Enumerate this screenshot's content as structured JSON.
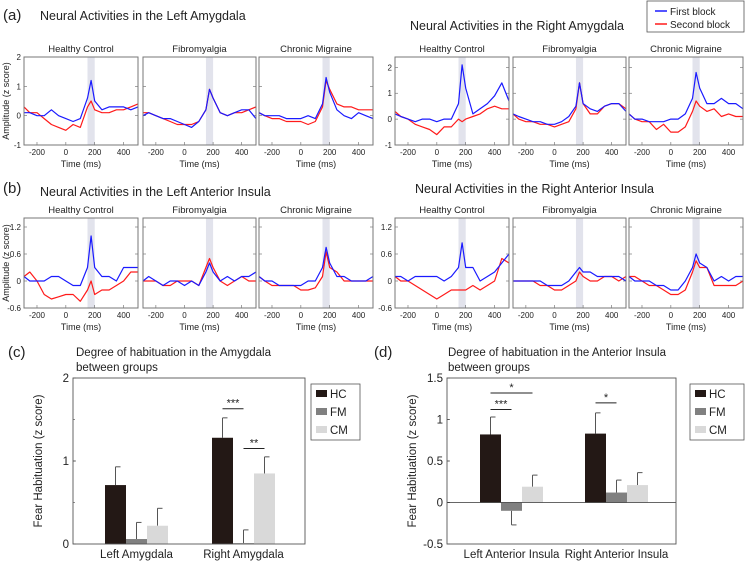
{
  "panel_labels": {
    "a": "(a)",
    "b": "(b)",
    "c": "(c)",
    "d": "(d)"
  },
  "legend": {
    "items": [
      {
        "label": "First block",
        "color": "#1a1aff"
      },
      {
        "label": "Second block",
        "color": "#ff1a1a"
      }
    ]
  },
  "chart_data": [
    {
      "type": "line",
      "title": "Neural Activities in the Left Amygdala",
      "ylabel": "Amplitude (z score)",
      "xlabel": "Time (ms)",
      "xlim": [
        -290,
        500
      ],
      "ylim": [
        -1,
        2
      ],
      "xticks": [
        -200,
        0,
        200,
        400
      ],
      "yticks": [
        -1,
        0,
        1,
        2
      ],
      "shaded_interval": [
        150,
        200
      ],
      "x": [
        -290,
        -250,
        -200,
        -150,
        -100,
        -50,
        0,
        50,
        100,
        150,
        175,
        200,
        250,
        300,
        350,
        400,
        450,
        500
      ],
      "panels": [
        {
          "title": "Healthy Control",
          "series": [
            {
              "name": "First block",
              "values": [
                0.1,
                0.1,
                0,
                0,
                0.2,
                0,
                -0.1,
                -0.2,
                -0.1,
                0.6,
                1.2,
                0.5,
                0.2,
                0.3,
                0.3,
                0.3,
                0.2,
                0.3
              ]
            },
            {
              "name": "Second block",
              "values": [
                0.3,
                0.1,
                0.1,
                -0.1,
                -0.3,
                -0.4,
                -0.5,
                -0.3,
                -0.4,
                0.3,
                0.5,
                0.2,
                0.1,
                0.1,
                0.2,
                0.2,
                0.3,
                0.4
              ]
            }
          ]
        },
        {
          "title": "Fibromyalgia",
          "series": [
            {
              "name": "First block",
              "values": [
                0,
                0.1,
                0,
                -0.1,
                -0.1,
                -0.2,
                -0.3,
                -0.4,
                -0.2,
                0.2,
                0.9,
                0.6,
                0.1,
                0,
                0.1,
                0.2,
                0.2,
                -0.1
              ]
            },
            {
              "name": "Second block",
              "values": [
                0.1,
                0.1,
                0,
                -0.1,
                -0.2,
                -0.3,
                -0.3,
                -0.3,
                -0.2,
                0.2,
                0.9,
                0.6,
                0.1,
                0,
                0.1,
                0.1,
                0.2,
                0.3
              ]
            }
          ]
        },
        {
          "title": "Chronic Migraine",
          "series": [
            {
              "name": "First block",
              "values": [
                0.1,
                0,
                0,
                0,
                -0.1,
                -0.1,
                -0.1,
                0,
                -0.1,
                0.4,
                1.3,
                0.8,
                0.2,
                0,
                -0.1,
                0.1,
                0,
                -0.1
              ]
            },
            {
              "name": "Second block",
              "values": [
                0.1,
                0,
                -0.1,
                -0.1,
                -0.2,
                -0.2,
                -0.2,
                -0.3,
                -0.2,
                0.3,
                1.2,
                0.9,
                0.4,
                0.3,
                0.3,
                0.2,
                0.2,
                0.2
              ]
            }
          ]
        }
      ]
    },
    {
      "type": "line",
      "title": "Neural Activities in the Right Amygdala",
      "ylabel": "",
      "xlabel": "Time (ms)",
      "xlim": [
        -290,
        500
      ],
      "ylim": [
        -1,
        2.4
      ],
      "xticks": [
        -200,
        0,
        200,
        400
      ],
      "yticks": [
        -1,
        0,
        1,
        2
      ],
      "shaded_interval": [
        150,
        200
      ],
      "x": [
        -290,
        -250,
        -200,
        -150,
        -100,
        -50,
        0,
        50,
        100,
        150,
        175,
        200,
        250,
        300,
        350,
        400,
        450,
        500
      ],
      "panels": [
        {
          "title": "Healthy Control",
          "series": [
            {
              "name": "First block",
              "values": [
                0.2,
                0.1,
                0,
                -0.1,
                0,
                0,
                -0.1,
                0,
                0,
                0.6,
                2.1,
                1.2,
                0.2,
                0.4,
                0.6,
                0.9,
                1.4,
                0.7
              ]
            },
            {
              "name": "Second block",
              "values": [
                0.3,
                0.1,
                0,
                -0.2,
                -0.3,
                -0.4,
                -0.6,
                -0.3,
                -0.3,
                0,
                -0.1,
                0,
                0.1,
                0.2,
                0.4,
                0.5,
                0.4,
                0.4
              ]
            }
          ]
        },
        {
          "title": "Fibromyalgia",
          "series": [
            {
              "name": "First block",
              "values": [
                0.2,
                0.1,
                0,
                -0.1,
                -0.1,
                -0.2,
                -0.2,
                -0.1,
                0.1,
                0.5,
                1.4,
                0.6,
                0.4,
                0.3,
                0.5,
                0.6,
                0.6,
                0.3
              ]
            },
            {
              "name": "Second block",
              "values": [
                0.2,
                0,
                -0.1,
                -0.1,
                -0.2,
                -0.2,
                -0.3,
                -0.2,
                -0.1,
                0.4,
                1.4,
                0.6,
                0.2,
                0.2,
                0.5,
                0.6,
                0.6,
                0.4
              ]
            }
          ]
        },
        {
          "title": "Chronic Migraine",
          "series": [
            {
              "name": "First block",
              "values": [
                0.2,
                0,
                0,
                -0.1,
                -0.1,
                -0.1,
                0,
                0,
                0.2,
                0.8,
                1.8,
                1.2,
                0.6,
                0.6,
                0.8,
                0.6,
                0.6,
                0.4
              ]
            },
            {
              "name": "Second block",
              "values": [
                0.2,
                0,
                -0.1,
                -0.1,
                -0.4,
                -0.2,
                -0.5,
                -0.5,
                -0.3,
                0.3,
                0.7,
                0.5,
                0.3,
                0.4,
                0.1,
                0.2,
                0.1,
                0.1
              ]
            }
          ]
        }
      ]
    },
    {
      "type": "line",
      "title": "Neural Activities in the Left Anterior Insula",
      "ylabel": "Amplitude (z score)",
      "xlabel": "Time (ms)",
      "xlim": [
        -290,
        500
      ],
      "ylim": [
        -0.6,
        1.4
      ],
      "xticks": [
        -200,
        0,
        200,
        400
      ],
      "yticks": [
        -0.6,
        0,
        0.6,
        1.2
      ],
      "shaded_interval": [
        150,
        200
      ],
      "x": [
        -290,
        -250,
        -200,
        -150,
        -100,
        -50,
        0,
        50,
        100,
        150,
        175,
        200,
        250,
        300,
        350,
        400,
        450,
        500
      ],
      "panels": [
        {
          "title": "Healthy Control",
          "series": [
            {
              "name": "First block",
              "values": [
                0.1,
                0,
                0,
                0,
                0.1,
                0.1,
                0,
                -0.1,
                -0.1,
                0.3,
                1.0,
                0.3,
                0.1,
                0.1,
                0,
                0.3,
                0.3,
                0.3
              ]
            },
            {
              "name": "Second block",
              "values": [
                0.1,
                0.2,
                0,
                -0.3,
                -0.4,
                -0.35,
                -0.3,
                -0.3,
                -0.45,
                -0.2,
                0,
                -0.3,
                -0.2,
                -0.2,
                -0.1,
                0,
                0.2,
                0.2
              ]
            }
          ]
        },
        {
          "title": "Fibromyalgia",
          "series": [
            {
              "name": "First block",
              "values": [
                0,
                0.1,
                0,
                -0.1,
                0,
                0,
                -0.1,
                0,
                -0.1,
                0.2,
                0.4,
                0.2,
                0,
                0.1,
                0,
                0.1,
                0.1,
                0.2
              ]
            },
            {
              "name": "Second block",
              "values": [
                0,
                0,
                0,
                -0.1,
                -0.1,
                0,
                0,
                0,
                -0.1,
                0.3,
                0.5,
                0.3,
                0,
                -0.1,
                0,
                0.1,
                0,
                0
              ]
            }
          ]
        },
        {
          "title": "Chronic Migraine",
          "series": [
            {
              "name": "First block",
              "values": [
                0.1,
                0,
                0,
                -0.1,
                -0.1,
                -0.1,
                -0.1,
                0,
                0,
                0.3,
                0.75,
                0.4,
                0.1,
                0.1,
                0,
                0,
                0,
                0.1
              ]
            },
            {
              "name": "Second block",
              "values": [
                0.1,
                0,
                -0.1,
                -0.1,
                -0.1,
                -0.1,
                -0.2,
                -0.2,
                -0.15,
                0.1,
                0.65,
                0.3,
                0.2,
                0,
                0,
                0,
                0,
                0
              ]
            }
          ]
        }
      ]
    },
    {
      "type": "line",
      "title": "Neural Activities in the Right Anterior Insula",
      "ylabel": "",
      "xlabel": "Time (ms)",
      "xlim": [
        -290,
        500
      ],
      "ylim": [
        -0.6,
        1.4
      ],
      "xticks": [
        -200,
        0,
        200,
        400
      ],
      "yticks": [
        -0.6,
        0,
        0.6,
        1.2
      ],
      "shaded_interval": [
        150,
        200
      ],
      "x": [
        -290,
        -250,
        -200,
        -150,
        -100,
        -50,
        0,
        50,
        100,
        150,
        175,
        200,
        250,
        300,
        350,
        400,
        450,
        500
      ],
      "panels": [
        {
          "title": "Healthy Control",
          "series": [
            {
              "name": "First block",
              "values": [
                0.1,
                0.1,
                0,
                0.1,
                0.1,
                0.1,
                0.1,
                0,
                0.1,
                0.3,
                0.85,
                0.3,
                0.3,
                0,
                0.1,
                0.2,
                0.4,
                0.6
              ]
            },
            {
              "name": "Second block",
              "values": [
                0.1,
                0,
                0,
                -0.1,
                -0.2,
                -0.3,
                -0.4,
                -0.3,
                -0.2,
                -0.2,
                -0.2,
                -0.2,
                -0.1,
                -0.2,
                -0.1,
                0,
                0.5,
                0.4
              ]
            }
          ]
        },
        {
          "title": "Fibromyalgia",
          "series": [
            {
              "name": "First block",
              "values": [
                0,
                0,
                0,
                0,
                0,
                -0.1,
                -0.1,
                -0.1,
                0,
                0.2,
                0.3,
                0.2,
                0.2,
                0.1,
                0.1,
                0.1,
                0.1,
                0
              ]
            },
            {
              "name": "Second block",
              "values": [
                0,
                0,
                0,
                0,
                -0.1,
                -0.1,
                -0.2,
                -0.2,
                -0.1,
                0,
                0.2,
                0.1,
                0,
                0,
                0.1,
                0.1,
                0,
                0.1
              ]
            }
          ]
        },
        {
          "title": "Chronic Migraine",
          "series": [
            {
              "name": "First block",
              "values": [
                0.1,
                0,
                0,
                0,
                -0.1,
                -0.1,
                -0.2,
                -0.2,
                0,
                0.3,
                0.6,
                0.4,
                0.3,
                0,
                0.1,
                0,
                0.1,
                0.1
              ]
            },
            {
              "name": "Second block",
              "values": [
                0.1,
                0.1,
                0,
                -0.1,
                -0.1,
                -0.2,
                -0.3,
                -0.3,
                -0.2,
                0.2,
                0.45,
                0.3,
                0.3,
                -0.1,
                -0.1,
                -0.1,
                -0.1,
                0
              ]
            }
          ]
        }
      ]
    },
    {
      "type": "bar",
      "title": [
        "Degree of habituation in the Amygdala",
        "between groups"
      ],
      "ylabel": "Fear Habituation (z score)",
      "categories": [
        "Left Amygdala",
        "Right Amygdala"
      ],
      "ylim": [
        0,
        2
      ],
      "yticks": [
        0,
        1,
        2
      ],
      "series": [
        {
          "name": "HC",
          "color": "#231815",
          "values": [
            0.71,
            1.28
          ],
          "error_upper": [
            0.93,
            1.52
          ]
        },
        {
          "name": "FM",
          "color": "#808080",
          "values": [
            0.06,
            0.01
          ],
          "error_upper": [
            0.26,
            0.17
          ]
        },
        {
          "name": "CM",
          "color": "#d9d9d9",
          "values": [
            0.22,
            0.85
          ],
          "error_upper": [
            0.43,
            1.05
          ]
        }
      ],
      "significance": [
        {
          "category": 1,
          "from": 0,
          "to": 1,
          "y": 1.63,
          "label": "***"
        },
        {
          "category": 1,
          "from": 1,
          "to": 2,
          "y": 1.15,
          "label": "**"
        }
      ]
    },
    {
      "type": "bar",
      "title": [
        "Degree of habituation in the Anterior Insula",
        "between groups"
      ],
      "ylabel": "Fear Habituation (z score)",
      "categories": [
        "Left Anterior Insula",
        "Right Anterior Insula"
      ],
      "ylim": [
        -0.5,
        1.5
      ],
      "yticks": [
        -0.5,
        0,
        0.5,
        1,
        1.5
      ],
      "series": [
        {
          "name": "HC",
          "color": "#231815",
          "values": [
            0.82,
            0.83
          ],
          "error_upper": [
            1.03,
            1.08
          ]
        },
        {
          "name": "FM",
          "color": "#808080",
          "values": [
            -0.1,
            0.12
          ],
          "error_upper": [
            -0.27,
            0.27
          ]
        },
        {
          "name": "CM",
          "color": "#d9d9d9",
          "values": [
            0.19,
            0.21
          ],
          "error_upper": [
            0.33,
            0.36
          ]
        }
      ],
      "significance": [
        {
          "category": 0,
          "from": 0,
          "to": 1,
          "y": 1.12,
          "label": "***"
        },
        {
          "category": 0,
          "from": 0,
          "to": 2,
          "y": 1.32,
          "label": "*"
        },
        {
          "category": 1,
          "from": 0,
          "to": 1,
          "y": 1.2,
          "label": "*"
        }
      ]
    }
  ]
}
